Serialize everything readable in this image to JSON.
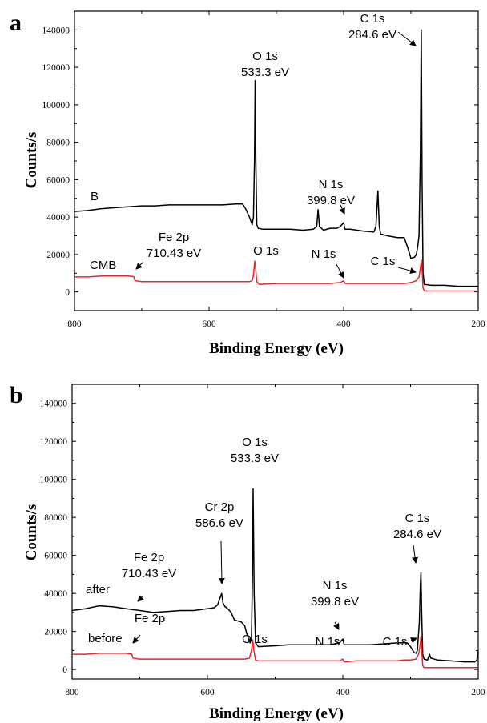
{
  "chart_data": [
    {
      "type": "line",
      "panel_label": "a",
      "xlabel": "Binding  Energy (eV)",
      "ylabel": "Counts/s",
      "xlim": [
        800,
        200
      ],
      "ylim": [
        -10000,
        150000
      ],
      "xticks": [
        800,
        600,
        400,
        200
      ],
      "yticks": [
        0,
        20000,
        40000,
        60000,
        80000,
        100000,
        120000,
        140000
      ],
      "grid": false,
      "series": [
        {
          "name": "B",
          "color": "#000000",
          "points": [
            [
              800,
              43000
            ],
            [
              780,
              43500
            ],
            [
              760,
              44500
            ],
            [
              740,
              45000
            ],
            [
              720,
              45500
            ],
            [
              700,
              46000
            ],
            [
              680,
              46000
            ],
            [
              660,
              46500
            ],
            [
              640,
              46500
            ],
            [
              620,
              46500
            ],
            [
              600,
              46500
            ],
            [
              580,
              46500
            ],
            [
              560,
              47000
            ],
            [
              550,
              47000
            ],
            [
              545,
              44000
            ],
            [
              540,
              40000
            ],
            [
              536,
              36000
            ],
            [
              534,
              40000
            ],
            [
              532.5,
              70000
            ],
            [
              531.5,
              113000
            ],
            [
              530.5,
              70000
            ],
            [
              529,
              36000
            ],
            [
              527,
              34000
            ],
            [
              520,
              33500
            ],
            [
              500,
              33500
            ],
            [
              480,
              33500
            ],
            [
              460,
              33000
            ],
            [
              445,
              33500
            ],
            [
              440,
              35000
            ],
            [
              438,
              44000
            ],
            [
              436,
              35000
            ],
            [
              430,
              33000
            ],
            [
              420,
              34000
            ],
            [
              410,
              34000
            ],
            [
              405,
              35000
            ],
            [
              400,
              37000
            ],
            [
              398,
              33500
            ],
            [
              390,
              33500
            ],
            [
              370,
              32500
            ],
            [
              355,
              32000
            ],
            [
              352,
              35000
            ],
            [
              349,
              54000
            ],
            [
              347,
              35000
            ],
            [
              345,
              31000
            ],
            [
              335,
              30000
            ],
            [
              320,
              29000
            ],
            [
              310,
              29000
            ],
            [
              305,
              24000
            ],
            [
              300,
              18000
            ],
            [
              295,
              18500
            ],
            [
              292,
              20000
            ],
            [
              290,
              24000
            ],
            [
              288,
              30000
            ],
            [
              286,
              75000
            ],
            [
              284.6,
              140000
            ],
            [
              283.5,
              60000
            ],
            [
              282,
              10000
            ],
            [
              280,
              4000
            ],
            [
              270,
              3500
            ],
            [
              250,
              3500
            ],
            [
              230,
              3000
            ],
            [
              210,
              3000
            ],
            [
              200,
              3000
            ]
          ]
        },
        {
          "name": "CMB",
          "color": "#e8262b",
          "points": [
            [
              800,
              8000
            ],
            [
              780,
              8000
            ],
            [
              760,
              8500
            ],
            [
              740,
              8500
            ],
            [
              720,
              8500
            ],
            [
              712,
              8200
            ],
            [
              710,
              6000
            ],
            [
              700,
              5500
            ],
            [
              680,
              5500
            ],
            [
              660,
              5500
            ],
            [
              640,
              5500
            ],
            [
              620,
              5500
            ],
            [
              600,
              5500
            ],
            [
              580,
              5500
            ],
            [
              560,
              5500
            ],
            [
              540,
              5500
            ],
            [
              536,
              6000
            ],
            [
              534,
              9000
            ],
            [
              532,
              16500
            ],
            [
              531,
              13000
            ],
            [
              529,
              5500
            ],
            [
              525,
              4000
            ],
            [
              500,
              4500
            ],
            [
              480,
              4500
            ],
            [
              460,
              4500
            ],
            [
              440,
              4500
            ],
            [
              420,
              4500
            ],
            [
              405,
              5000
            ],
            [
              400,
              6000
            ],
            [
              398,
              4500
            ],
            [
              380,
              4500
            ],
            [
              360,
              4500
            ],
            [
              340,
              4500
            ],
            [
              320,
              4500
            ],
            [
              310,
              4500
            ],
            [
              300,
              5000
            ],
            [
              292,
              6000
            ],
            [
              288,
              8000
            ],
            [
              285.5,
              14000
            ],
            [
              284.6,
              17000
            ],
            [
              283.5,
              12000
            ],
            [
              282,
              2000
            ],
            [
              280,
              500
            ],
            [
              250,
              500
            ],
            [
              220,
              500
            ],
            [
              200,
              500
            ]
          ]
        }
      ],
      "annotations": [
        {
          "lines": [
            "C 1s",
            "284.6 eV"
          ]
        },
        {
          "lines": [
            "O 1s",
            "533.3 eV"
          ]
        },
        {
          "lines": [
            "N 1s",
            "399.8 eV"
          ]
        },
        {
          "lines": [
            "Fe 2p",
            "710.43 eV"
          ]
        },
        {
          "lines": [
            "O 1s"
          ]
        },
        {
          "lines": [
            "N 1s"
          ]
        },
        {
          "lines": [
            "C 1s"
          ]
        },
        {
          "lines": [
            "B"
          ]
        },
        {
          "lines": [
            "CMB"
          ]
        }
      ]
    },
    {
      "type": "line",
      "panel_label": "b",
      "xlabel": "Binding  Energy (eV)",
      "ylabel": "Counts/s",
      "xlim": [
        800,
        200
      ],
      "ylim": [
        -5000,
        150000
      ],
      "xticks": [
        800,
        600,
        400,
        200
      ],
      "yticks": [
        0,
        20000,
        40000,
        60000,
        80000,
        100000,
        120000,
        140000
      ],
      "grid": false,
      "series": [
        {
          "name": "after",
          "color": "#000000",
          "points": [
            [
              800,
              31000
            ],
            [
              780,
              32000
            ],
            [
              760,
              33500
            ],
            [
              740,
              33000
            ],
            [
              720,
              32000
            ],
            [
              700,
              31000
            ],
            [
              680,
              30000
            ],
            [
              660,
              30500
            ],
            [
              640,
              31000
            ],
            [
              620,
              31000
            ],
            [
              600,
              32000
            ],
            [
              590,
              32500
            ],
            [
              585,
              34000
            ],
            [
              582,
              37000
            ],
            [
              579,
              40000
            ],
            [
              577,
              35000
            ],
            [
              574,
              33000
            ],
            [
              570,
              32000
            ],
            [
              565,
              30000
            ],
            [
              560,
              26000
            ],
            [
              550,
              25000
            ],
            [
              545,
              23000
            ],
            [
              542,
              19000
            ],
            [
              540,
              17000
            ],
            [
              537,
              14000
            ],
            [
              535,
              16000
            ],
            [
              533.5,
              50000
            ],
            [
              532.5,
              95000
            ],
            [
              531,
              40000
            ],
            [
              529,
              14000
            ],
            [
              525,
              12000
            ],
            [
              500,
              12500
            ],
            [
              480,
              13000
            ],
            [
              460,
              13000
            ],
            [
              440,
              13000
            ],
            [
              420,
              13000
            ],
            [
              405,
              14000
            ],
            [
              400,
              16000
            ],
            [
              398,
              13000
            ],
            [
              380,
              13000
            ],
            [
              360,
              13000
            ],
            [
              340,
              13500
            ],
            [
              320,
              14000
            ],
            [
              305,
              14000
            ],
            [
              300,
              12000
            ],
            [
              295,
              9000
            ],
            [
              292,
              8500
            ],
            [
              290,
              10000
            ],
            [
              287,
              25000
            ],
            [
              285.5,
              45000
            ],
            [
              284.6,
              51000
            ],
            [
              283.5,
              30000
            ],
            [
              282,
              8000
            ],
            [
              280,
              5500
            ],
            [
              275,
              5000
            ],
            [
              272,
              8000
            ],
            [
              270,
              6000
            ],
            [
              260,
              5000
            ],
            [
              240,
              4500
            ],
            [
              220,
              4000
            ],
            [
              205,
              4000
            ],
            [
              202,
              5000
            ],
            [
              200,
              10000
            ]
          ]
        },
        {
          "name": "before",
          "color": "#e8262b",
          "points": [
            [
              800,
              8000
            ],
            [
              780,
              8000
            ],
            [
              760,
              8500
            ],
            [
              740,
              8500
            ],
            [
              720,
              8500
            ],
            [
              712,
              8000
            ],
            [
              710,
              6000
            ],
            [
              700,
              5500
            ],
            [
              680,
              5500
            ],
            [
              660,
              5500
            ],
            [
              640,
              5500
            ],
            [
              620,
              5500
            ],
            [
              600,
              5500
            ],
            [
              580,
              5500
            ],
            [
              560,
              5500
            ],
            [
              545,
              5500
            ],
            [
              538,
              6000
            ],
            [
              535,
              10000
            ],
            [
              533,
              15500
            ],
            [
              531.5,
              10000
            ],
            [
              529,
              5000
            ],
            [
              525,
              4500
            ],
            [
              500,
              4500
            ],
            [
              480,
              4500
            ],
            [
              460,
              4500
            ],
            [
              440,
              4500
            ],
            [
              420,
              4500
            ],
            [
              405,
              4500
            ],
            [
              400,
              5500
            ],
            [
              398,
              4000
            ],
            [
              380,
              4500
            ],
            [
              360,
              4500
            ],
            [
              340,
              4500
            ],
            [
              320,
              4500
            ],
            [
              310,
              5000
            ],
            [
              300,
              5000
            ],
            [
              292,
              5500
            ],
            [
              288,
              8000
            ],
            [
              285.5,
              14000
            ],
            [
              284.6,
              17500
            ],
            [
              283.5,
              11000
            ],
            [
              282,
              2000
            ],
            [
              280,
              1000
            ],
            [
              250,
              1000
            ],
            [
              220,
              1000
            ],
            [
              200,
              1000
            ]
          ]
        }
      ],
      "annotations": [
        {
          "lines": [
            "O 1s",
            "533.3 eV"
          ]
        },
        {
          "lines": [
            "C 1s",
            "284.6 eV"
          ]
        },
        {
          "lines": [
            "Cr 2p",
            "586.6 eV"
          ]
        },
        {
          "lines": [
            "Fe 2p",
            "710.43 eV"
          ]
        },
        {
          "lines": [
            "N 1s",
            "399.8 eV"
          ]
        },
        {
          "lines": [
            "Fe 2p"
          ]
        },
        {
          "lines": [
            "O 1s"
          ]
        },
        {
          "lines": [
            "N 1s"
          ]
        },
        {
          "lines": [
            "C 1s"
          ]
        },
        {
          "lines": [
            "after"
          ]
        },
        {
          "lines": [
            "before"
          ]
        }
      ]
    }
  ]
}
